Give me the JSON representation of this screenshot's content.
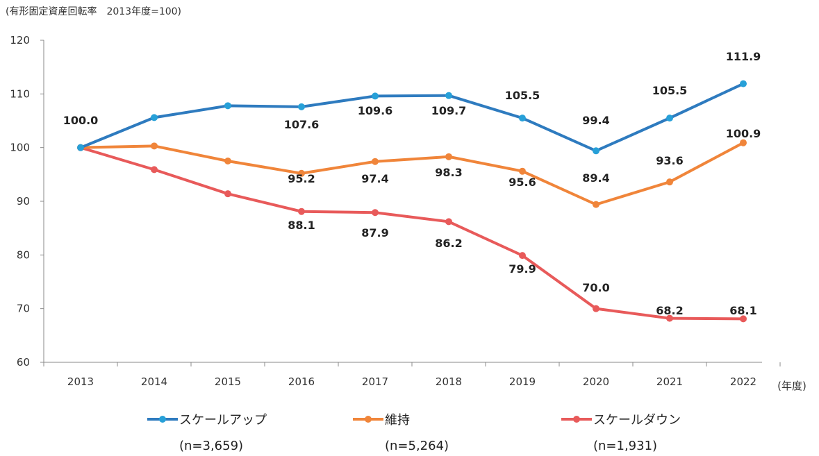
{
  "chart_data": {
    "type": "line",
    "title": "(有形固定資産回転率　2013年度=100)",
    "xlabel": "(年度)",
    "ylabel": "",
    "ylim": [
      60,
      120
    ],
    "yticks": [
      60,
      70,
      80,
      90,
      100,
      110,
      120
    ],
    "categories": [
      "2013",
      "2014",
      "2015",
      "2016",
      "2017",
      "2018",
      "2019",
      "2020",
      "2021",
      "2022"
    ],
    "grid": false,
    "legend_position": "bottom",
    "series": [
      {
        "name": "スケールアップ",
        "n": "(n=3,659)",
        "color": "#2e7bbf",
        "marker_color": "#27a0d8",
        "values": [
          100.0,
          105.6,
          107.8,
          107.6,
          109.6,
          109.7,
          105.5,
          99.4,
          105.5,
          111.9
        ],
        "labels": [
          "100.0",
          null,
          null,
          "107.6",
          "109.6",
          "109.7",
          "105.5",
          "99.4",
          "105.5",
          "111.9"
        ]
      },
      {
        "name": "維持",
        "n": "(n=5,264)",
        "color": "#f0853a",
        "marker_color": "#f0853a",
        "values": [
          100.0,
          100.3,
          97.5,
          95.2,
          97.4,
          98.3,
          95.6,
          89.4,
          93.6,
          100.9
        ],
        "labels": [
          null,
          null,
          null,
          "95.2",
          "97.4",
          "98.3",
          "95.6",
          "89.4",
          "93.6",
          "100.9"
        ]
      },
      {
        "name": "スケールダウン",
        "n": "(n=1,931)",
        "color": "#e85a5a",
        "marker_color": "#e85a5a",
        "values": [
          100.0,
          95.9,
          91.4,
          88.1,
          87.9,
          86.2,
          79.9,
          70.0,
          68.2,
          68.1
        ],
        "labels": [
          null,
          null,
          null,
          "88.1",
          "87.9",
          "86.2",
          "79.9",
          "70.0",
          "68.2",
          "68.1"
        ]
      }
    ]
  }
}
